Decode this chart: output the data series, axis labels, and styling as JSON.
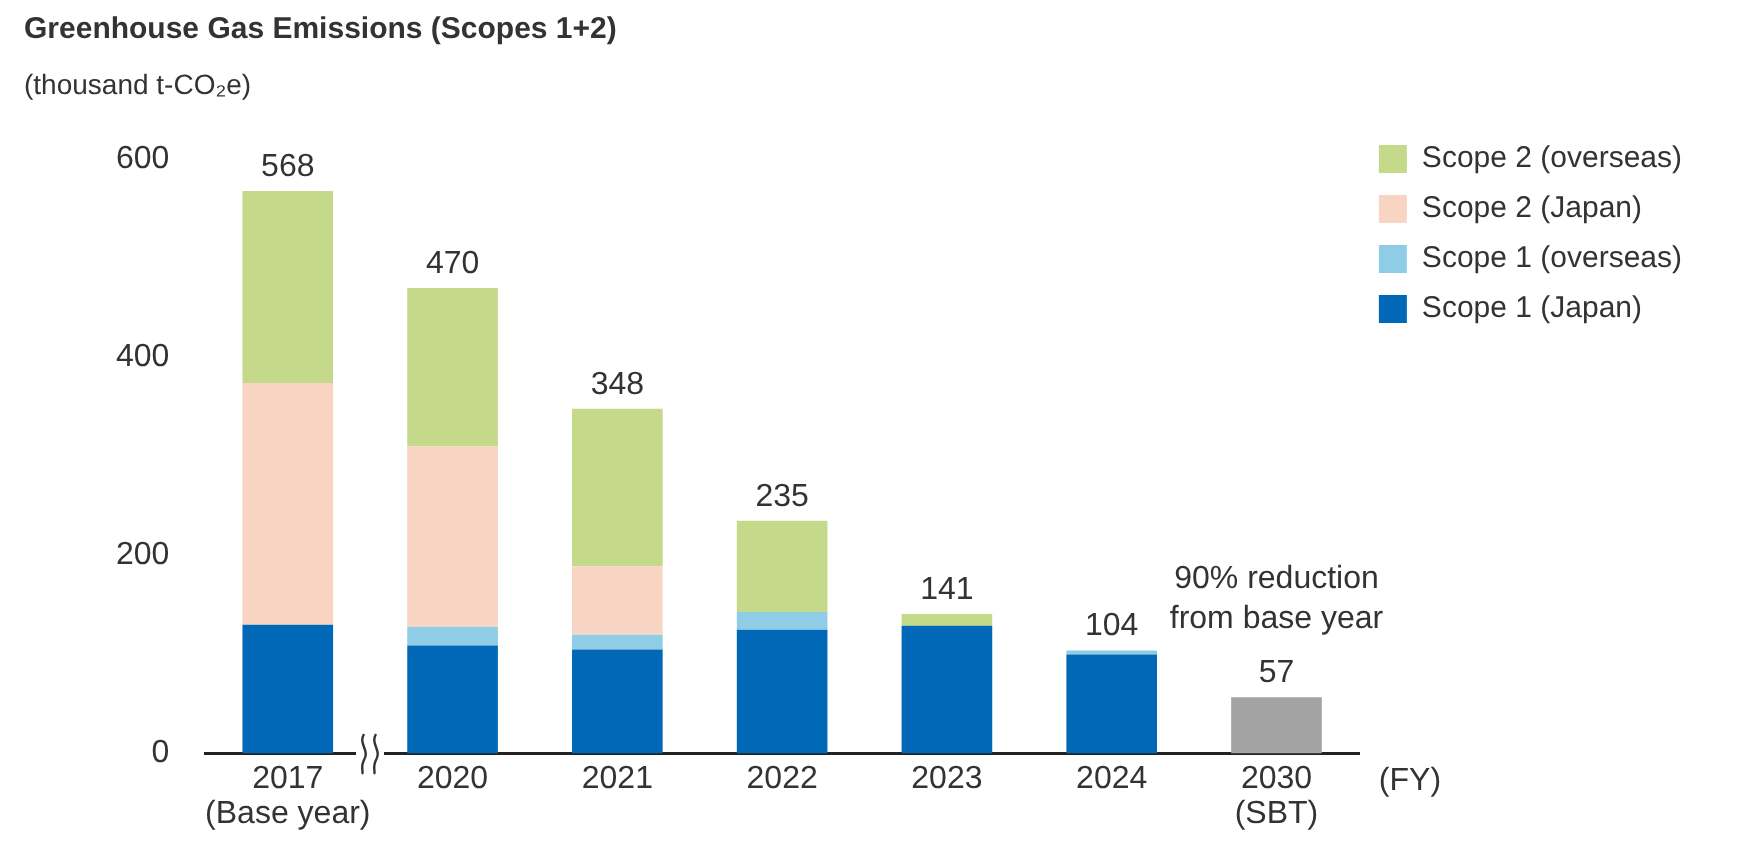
{
  "chart_data": {
    "type": "bar",
    "title": "Greenhouse Gas Emissions (Scopes 1+2)",
    "ylabel": "(thousand t-CO₂e)",
    "xlabel": "(FY)",
    "categories": [
      "2017\n(Base year)",
      "2020",
      "2021",
      "2022",
      "2023",
      "2024",
      "2030\n(SBT)"
    ],
    "stacked": true,
    "series": [
      {
        "name": "Scope 1 (Japan)",
        "color": "#0068b7",
        "values": [
          130,
          109,
          105,
          125,
          129,
          100,
          null
        ]
      },
      {
        "name": "Scope 1 (overseas)",
        "color": "#8fcde6",
        "values": [
          0,
          19,
          15,
          18,
          0,
          4,
          null
        ]
      },
      {
        "name": "Scope 2 (Japan)",
        "color": "#f8d5c2",
        "values": [
          244,
          182,
          69,
          0,
          0,
          0,
          null
        ]
      },
      {
        "name": "Scope 2 (overseas)",
        "color": "#c5d98a",
        "values": [
          194,
          160,
          159,
          92,
          12,
          0,
          null
        ]
      },
      {
        "color": "#a3a3a3",
        "values": [
          null,
          null,
          null,
          null,
          null,
          null,
          57
        ]
      }
    ],
    "totals": [
      "568",
      "470",
      "348",
      "235",
      "141",
      "104",
      "57"
    ],
    "annotations": [
      "90% reduction\nfrom base year"
    ],
    "ylim": [
      0,
      600
    ],
    "yticks": [
      0,
      200,
      400,
      600
    ],
    "grid": false,
    "legend": "top right"
  }
}
